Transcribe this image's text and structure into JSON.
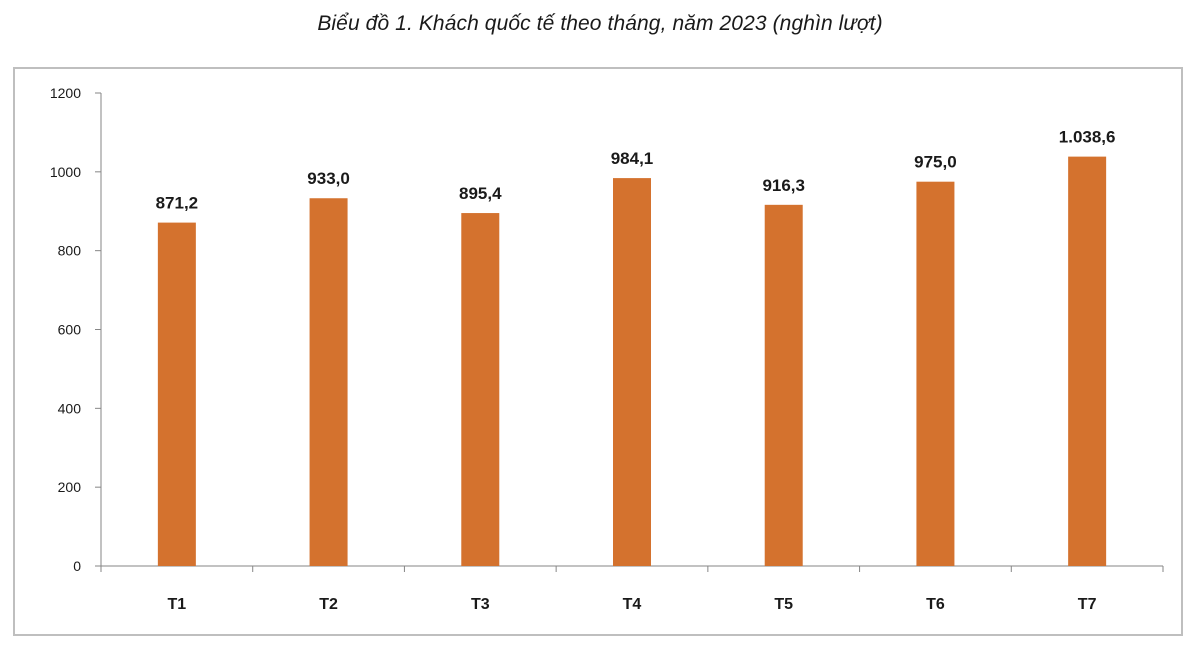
{
  "chart_data": {
    "type": "bar",
    "title": "Biểu đồ 1. Khách quốc tế theo tháng, năm 2023 (nghìn lượt)",
    "xlabel": "",
    "ylabel": "",
    "categories": [
      "T1",
      "T2",
      "T3",
      "T4",
      "T5",
      "T6",
      "T7"
    ],
    "values": [
      871.2,
      933.0,
      895.4,
      984.1,
      916.3,
      975.0,
      1038.6
    ],
    "data_labels": [
      "871,2",
      "933,0",
      "895,4",
      "984,1",
      "916,3",
      "975,0",
      "1.038,6"
    ],
    "ylim": [
      0,
      1200
    ],
    "yticks": [
      0,
      200,
      400,
      600,
      800,
      1000,
      1200
    ],
    "ytick_labels": [
      "0",
      "200",
      "400",
      "600",
      "800",
      "1000",
      "1200"
    ],
    "grid": false,
    "legend": "none",
    "bar_color": "#D4722E",
    "axis_color": "#868686"
  }
}
